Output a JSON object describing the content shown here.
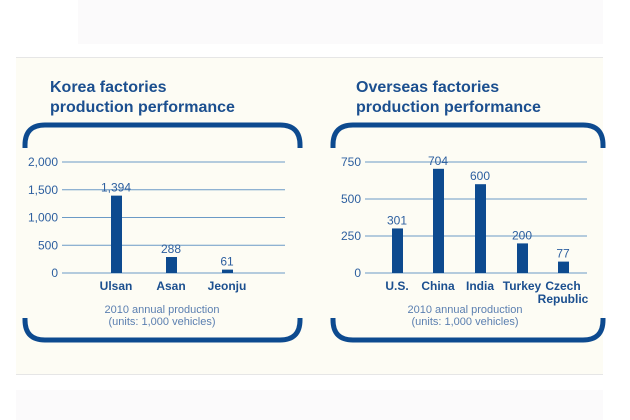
{
  "colors": {
    "bar": "#0d4a8f",
    "grid": "#6b9ac6",
    "frame": "#0d4a8f"
  },
  "chart_data": [
    {
      "type": "bar",
      "title": [
        "Korea factories",
        "production performance"
      ],
      "categories": [
        "Ulsan",
        "Asan",
        "Jeonju"
      ],
      "values": [
        1394,
        288,
        61
      ],
      "value_labels": [
        "1,394",
        "288",
        "61"
      ],
      "yticks": [
        0,
        500,
        1000,
        1500,
        2000
      ],
      "ytick_labels": [
        "0",
        "500",
        "1,000",
        "1,500",
        "2,000"
      ],
      "ylim": [
        0,
        2000
      ],
      "grid": true,
      "caption": [
        "2010 annual production",
        "(units:  1,000 vehicles)"
      ]
    },
    {
      "type": "bar",
      "title": [
        "Overseas factories",
        "production performance"
      ],
      "categories": [
        "U.S.",
        "China",
        "India",
        "Turkey",
        "Czech Republic"
      ],
      "values": [
        301,
        704,
        600,
        200,
        77
      ],
      "value_labels": [
        "301",
        "704",
        "600",
        "200",
        "77"
      ],
      "yticks": [
        0,
        250,
        500,
        750
      ],
      "ytick_labels": [
        "0",
        "250",
        "500",
        "750"
      ],
      "ylim": [
        0,
        750
      ],
      "grid": true,
      "caption": [
        "2010 annual production",
        "(units:  1,000 vehicles)"
      ]
    }
  ]
}
